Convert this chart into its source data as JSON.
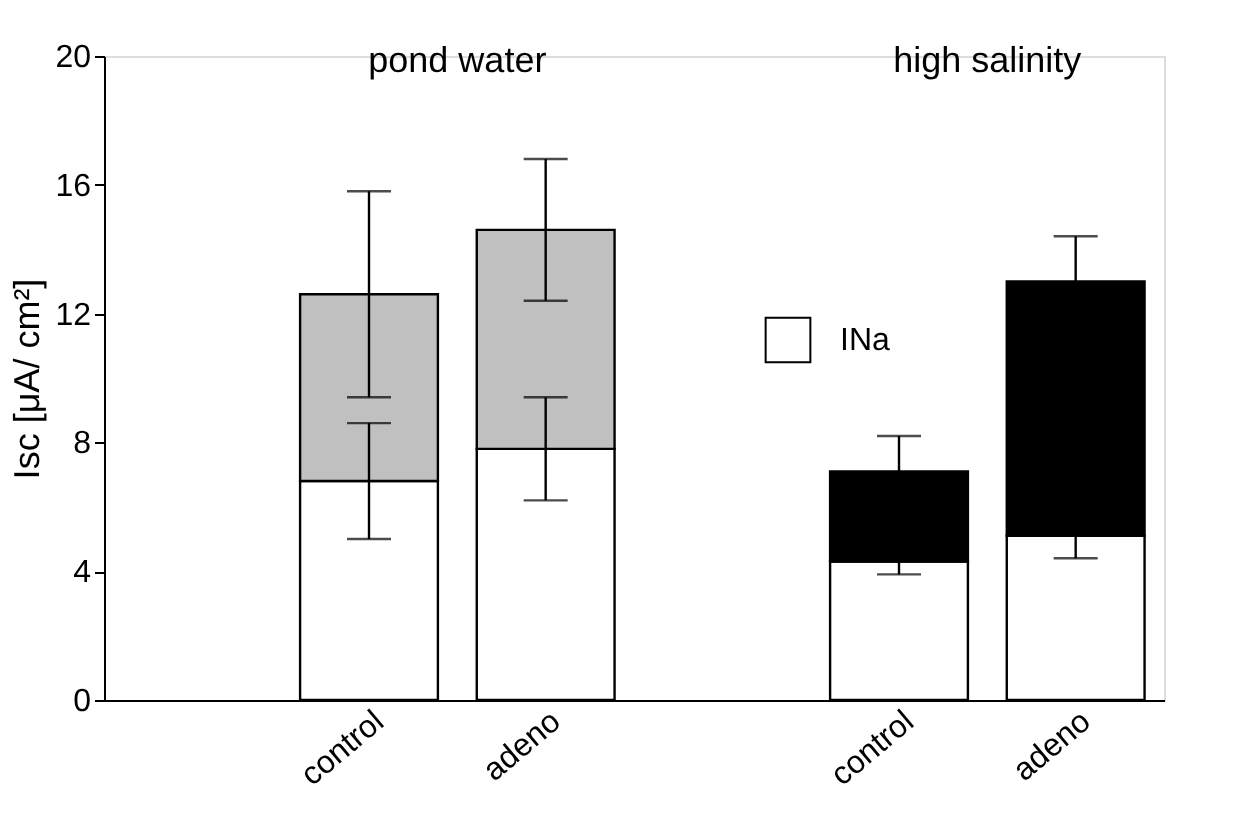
{
  "chart_data": {
    "type": "bar",
    "stacked": true,
    "ylabel": "Isc [μA/ cm²]",
    "categories": [
      null,
      "control",
      "adeno",
      null,
      "control",
      "adeno"
    ],
    "series": [
      {
        "name": "INa",
        "color": "#ffffff",
        "values": [
          null,
          6.8,
          7.8,
          null,
          4.3,
          5.1
        ],
        "errors": [
          null,
          1.8,
          1.6,
          null,
          0.4,
          0.7
        ]
      },
      {
        "colors": [
          null,
          "#c0c0c0",
          "#c0c0c0",
          null,
          "#000000",
          "#000000"
        ],
        "values": [
          null,
          5.8,
          6.8,
          null,
          2.8,
          7.9
        ],
        "errors": [
          null,
          3.2,
          2.2,
          null,
          1.1,
          1.4
        ]
      }
    ],
    "annotations": [
      "pond water",
      "high salinity"
    ],
    "ylim": [
      0,
      20
    ],
    "yticks": [
      0,
      4,
      8,
      12,
      16,
      20
    ],
    "grid": false,
    "legend": "right"
  }
}
